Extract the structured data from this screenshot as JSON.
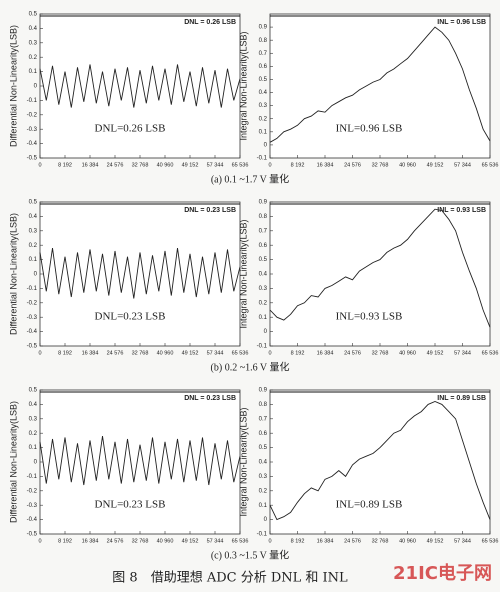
{
  "chart_data": [
    {
      "type": "line",
      "ylabel": "Differential Non-Linearity(LSB)",
      "annotation": "DNL = 0.26 LSB",
      "note": "DNL=0.26 LSB",
      "color": "#222222",
      "x": [
        0,
        2048,
        4096,
        6144,
        8192,
        10240,
        12288,
        14336,
        16384,
        18432,
        20480,
        22528,
        24576,
        26624,
        28672,
        30720,
        32768,
        34816,
        36864,
        38912,
        40960,
        43008,
        45056,
        47104,
        49152,
        51200,
        53248,
        55296,
        57344,
        59392,
        61440,
        63488,
        65536
      ],
      "values": [
        0.12,
        -0.1,
        0.14,
        -0.13,
        0.1,
        -0.15,
        0.13,
        -0.11,
        0.15,
        -0.12,
        0.1,
        -0.14,
        0.12,
        -0.1,
        0.13,
        -0.15,
        0.11,
        -0.12,
        0.14,
        -0.1,
        0.12,
        -0.13,
        0.15,
        -0.11,
        0.1,
        -0.14,
        0.13,
        -0.12,
        0.11,
        -0.15,
        0.12,
        -0.1,
        0.05
      ],
      "xlim": [
        0,
        65536
      ],
      "ylim": [
        -0.5,
        0.5
      ],
      "xticks": [
        0,
        {
          "value": 8192,
          "label": "8 192"
        },
        {
          "value": 16384,
          "label": "16 384"
        },
        {
          "value": 24576,
          "label": "24 576"
        },
        {
          "value": 32768,
          "label": "32 768"
        },
        {
          "value": 40960,
          "label": "40 960"
        },
        {
          "value": 49152,
          "label": "49 152"
        },
        {
          "value": 57344,
          "label": "57 344"
        },
        {
          "value": 65536,
          "label": "65 536"
        }
      ],
      "yticks": [
        -0.5,
        -0.4,
        -0.3,
        -0.2,
        -0.1,
        0,
        0.1,
        0.2,
        0.3,
        0.4,
        0.5
      ]
    },
    {
      "type": "line",
      "ylabel": "Integral Non-Linearity(LSB)",
      "annotation": "INL = 0.96 LSB",
      "note": "INL=0.96 LSB",
      "color": "#222222",
      "x": [
        0,
        2048,
        4096,
        6144,
        8192,
        10240,
        12288,
        14336,
        16384,
        18432,
        20480,
        22528,
        24576,
        26624,
        28672,
        30720,
        32768,
        34816,
        36864,
        38912,
        40960,
        43008,
        45056,
        47104,
        49152,
        51200,
        53248,
        55296,
        57344,
        59392,
        61440,
        63488,
        65536
      ],
      "values": [
        0.02,
        0.05,
        0.1,
        0.12,
        0.15,
        0.2,
        0.22,
        0.26,
        0.25,
        0.3,
        0.33,
        0.36,
        0.38,
        0.42,
        0.45,
        0.48,
        0.5,
        0.55,
        0.58,
        0.62,
        0.66,
        0.72,
        0.78,
        0.84,
        0.9,
        0.86,
        0.8,
        0.7,
        0.58,
        0.42,
        0.28,
        0.12,
        0.03
      ],
      "xlim": [
        0,
        65536
      ],
      "ylim": [
        -0.1,
        1
      ],
      "xticks": [
        0,
        {
          "value": 8192,
          "label": "8 192"
        },
        {
          "value": 16384,
          "label": "16 384"
        },
        {
          "value": 24576,
          "label": "24 576"
        },
        {
          "value": 32768,
          "label": "32 768"
        },
        {
          "value": 40960,
          "label": "40 960"
        },
        {
          "value": 49152,
          "label": "49 152"
        },
        {
          "value": 57344,
          "label": "57 344"
        },
        {
          "value": 65536,
          "label": "65 536"
        }
      ],
      "yticks": [
        -0.1,
        0,
        0.1,
        0.2,
        0.3,
        0.4,
        0.5,
        0.6,
        0.7,
        0.8,
        0.9
      ]
    },
    {
      "type": "line",
      "ylabel": "Differential Non-Linearity(LSB)",
      "annotation": "DNL = 0.23 LSB",
      "note": "DNL=0.23 LSB",
      "color": "#222222",
      "x": [
        0,
        2048,
        4096,
        6144,
        8192,
        10240,
        12288,
        14336,
        16384,
        18432,
        20480,
        22528,
        24576,
        26624,
        28672,
        30720,
        32768,
        34816,
        36864,
        38912,
        40960,
        43008,
        45056,
        47104,
        49152,
        51200,
        53248,
        55296,
        57344,
        59392,
        61440,
        63488,
        65536
      ],
      "values": [
        0.15,
        -0.12,
        0.18,
        -0.14,
        0.12,
        -0.16,
        0.15,
        -0.13,
        0.17,
        -0.12,
        0.14,
        -0.15,
        0.16,
        -0.13,
        0.12,
        -0.17,
        0.15,
        -0.14,
        0.13,
        -0.12,
        0.16,
        -0.15,
        0.18,
        -0.13,
        0.14,
        -0.16,
        0.12,
        -0.14,
        0.15,
        -0.13,
        0.17,
        -0.12,
        0.05
      ],
      "xlim": [
        0,
        65536
      ],
      "ylim": [
        -0.5,
        0.5
      ],
      "xticks": [
        0,
        {
          "value": 8192,
          "label": "8 192"
        },
        {
          "value": 16384,
          "label": "16 384"
        },
        {
          "value": 24576,
          "label": "24 576"
        },
        {
          "value": 32768,
          "label": "32 768"
        },
        {
          "value": 40960,
          "label": "40 960"
        },
        {
          "value": 49152,
          "label": "49 152"
        },
        {
          "value": 57344,
          "label": "57 344"
        },
        {
          "value": 65536,
          "label": "65 536"
        }
      ],
      "yticks": [
        -0.5,
        -0.4,
        -0.3,
        -0.2,
        -0.1,
        0,
        0.1,
        0.2,
        0.3,
        0.4,
        0.5
      ]
    },
    {
      "type": "line",
      "ylabel": "Integral Non-Linearity(LSB)",
      "annotation": "INL = 0.93 LSB",
      "note": "INL=0.93 LSB",
      "color": "#222222",
      "x": [
        0,
        2048,
        4096,
        6144,
        8192,
        10240,
        12288,
        14336,
        16384,
        18432,
        20480,
        22528,
        24576,
        26624,
        28672,
        30720,
        32768,
        34816,
        36864,
        38912,
        40960,
        43008,
        45056,
        47104,
        49152,
        51200,
        53248,
        55296,
        57344,
        59392,
        61440,
        63488,
        65536
      ],
      "values": [
        0.15,
        0.1,
        0.08,
        0.12,
        0.18,
        0.2,
        0.25,
        0.24,
        0.3,
        0.32,
        0.35,
        0.38,
        0.36,
        0.42,
        0.45,
        0.48,
        0.5,
        0.55,
        0.58,
        0.6,
        0.64,
        0.7,
        0.75,
        0.8,
        0.85,
        0.84,
        0.78,
        0.7,
        0.55,
        0.42,
        0.3,
        0.15,
        0.03
      ],
      "xlim": [
        0,
        65536
      ],
      "ylim": [
        -0.1,
        0.9
      ],
      "xticks": [
        0,
        {
          "value": 8192,
          "label": "8 192"
        },
        {
          "value": 16384,
          "label": "16 384"
        },
        {
          "value": 24576,
          "label": "24 576"
        },
        {
          "value": 32768,
          "label": "32 768"
        },
        {
          "value": 40960,
          "label": "40 960"
        },
        {
          "value": 49152,
          "label": "49 152"
        },
        {
          "value": 57344,
          "label": "57 344"
        },
        {
          "value": 65536,
          "label": "65 536"
        }
      ],
      "yticks": [
        -0.1,
        0,
        0.1,
        0.2,
        0.3,
        0.4,
        0.5,
        0.6,
        0.7,
        0.8,
        0.9
      ]
    },
    {
      "type": "line",
      "ylabel": "Differential Non-Linearity(LSB)",
      "annotation": "DNL = 0.23 LSB",
      "note": "DNL=0.23 LSB",
      "color": "#222222",
      "x": [
        0,
        2048,
        4096,
        6144,
        8192,
        10240,
        12288,
        14336,
        16384,
        18432,
        20480,
        22528,
        24576,
        26624,
        28672,
        30720,
        32768,
        34816,
        36864,
        38912,
        40960,
        43008,
        45056,
        47104,
        49152,
        51200,
        53248,
        55296,
        57344,
        59392,
        61440,
        63488,
        65536
      ],
      "values": [
        0.14,
        -0.15,
        0.16,
        -0.12,
        0.17,
        -0.14,
        0.13,
        -0.16,
        0.15,
        -0.13,
        0.18,
        -0.12,
        0.14,
        -0.15,
        0.16,
        -0.14,
        0.12,
        -0.13,
        0.17,
        -0.15,
        0.14,
        -0.12,
        0.16,
        -0.14,
        0.15,
        -0.13,
        0.17,
        -0.16,
        0.13,
        -0.12,
        0.15,
        -0.14,
        0.04
      ],
      "xlim": [
        0,
        65536
      ],
      "ylim": [
        -0.5,
        0.5
      ],
      "xticks": [
        0,
        {
          "value": 8192,
          "label": "8 192"
        },
        {
          "value": 16384,
          "label": "16 384"
        },
        {
          "value": 24576,
          "label": "24 576"
        },
        {
          "value": 32768,
          "label": "32 768"
        },
        {
          "value": 40960,
          "label": "40 960"
        },
        {
          "value": 49152,
          "label": "49 152"
        },
        {
          "value": 57344,
          "label": "57 344"
        },
        {
          "value": 65536,
          "label": "65 536"
        }
      ],
      "yticks": [
        -0.5,
        -0.4,
        -0.3,
        -0.2,
        -0.1,
        0,
        0.1,
        0.2,
        0.3,
        0.4,
        0.5
      ]
    },
    {
      "type": "line",
      "ylabel": "Integral Non-Linearity(LSB)",
      "annotation": "INL = 0.89 LSB",
      "note": "INL=0.89 LSB",
      "color": "#222222",
      "x": [
        0,
        2048,
        4096,
        6144,
        8192,
        10240,
        12288,
        14336,
        16384,
        18432,
        20480,
        22528,
        24576,
        26624,
        28672,
        30720,
        32768,
        34816,
        36864,
        38912,
        40960,
        43008,
        45056,
        47104,
        49152,
        51200,
        53248,
        55296,
        57344,
        59392,
        61440,
        63488,
        65536
      ],
      "values": [
        0.1,
        0,
        0.02,
        0.05,
        0.12,
        0.18,
        0.22,
        0.2,
        0.28,
        0.3,
        0.34,
        0.3,
        0.38,
        0.42,
        0.44,
        0.46,
        0.5,
        0.55,
        0.6,
        0.62,
        0.68,
        0.72,
        0.75,
        0.8,
        0.82,
        0.8,
        0.75,
        0.7,
        0.55,
        0.4,
        0.25,
        0.12,
        0
      ],
      "xlim": [
        0,
        65536
      ],
      "ylim": [
        -0.1,
        0.9
      ],
      "xticks": [
        0,
        {
          "value": 8192,
          "label": "8 192"
        },
        {
          "value": 16384,
          "label": "16 384"
        },
        {
          "value": 24576,
          "label": "24 576"
        },
        {
          "value": 32768,
          "label": "32 768"
        },
        {
          "value": 40960,
          "label": "40 960"
        },
        {
          "value": 49152,
          "label": "49 152"
        },
        {
          "value": 57344,
          "label": "57 344"
        },
        {
          "value": 65536,
          "label": "65 536"
        }
      ],
      "yticks": [
        -0.1,
        0,
        0.1,
        0.2,
        0.3,
        0.4,
        0.5,
        0.6,
        0.7,
        0.8,
        0.9
      ]
    }
  ],
  "subcaptions": [
    "(a) 0.1 ~1.7 V 量化",
    "(b) 0.2 ~1.6 V 量化",
    "(c) 0.3 ~1.5 V 量化"
  ],
  "caption": "图 8　借助理想 ADC 分析 DNL 和 INL",
  "watermark": "21IC电子网"
}
